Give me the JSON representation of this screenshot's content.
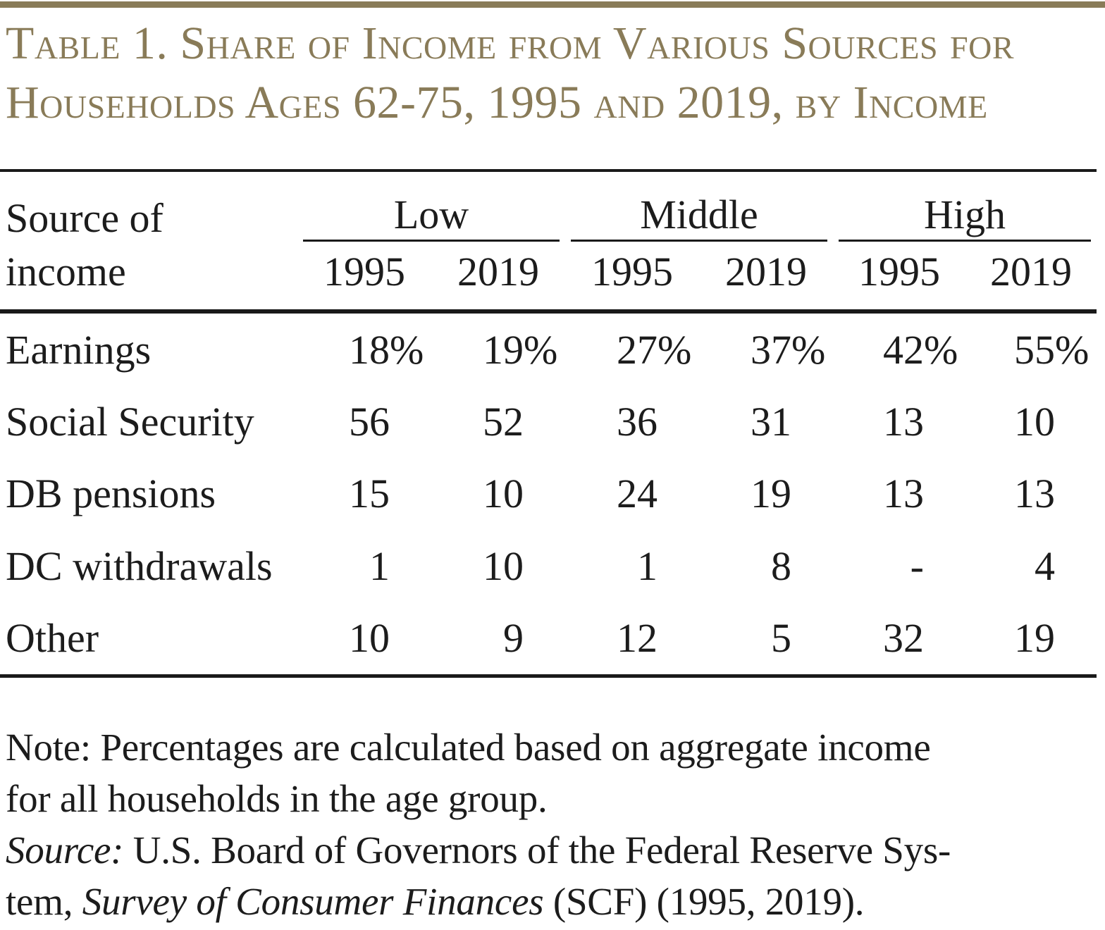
{
  "theme": {
    "accent_color": "#897b58",
    "rule_color": "#1a1a1a",
    "text_color": "#1c1c1c"
  },
  "title": {
    "line1": "Table 1. Share of Income from Various Sources for",
    "line2": "Households Ages 62-75, 1995 and 2019, by Income"
  },
  "table": {
    "stub_header": {
      "line1": "Source of",
      "line2": "income"
    },
    "groups": [
      {
        "label": "Low"
      },
      {
        "label": "Middle"
      },
      {
        "label": "High"
      }
    ],
    "year_headers": [
      "1995",
      "2019",
      "1995",
      "2019",
      "1995",
      "2019"
    ],
    "rows": [
      {
        "label": "Earnings",
        "values": [
          "18%",
          "19%",
          "27%",
          "37%",
          "42%",
          "55%"
        ]
      },
      {
        "label": "Social Security",
        "values": [
          "56",
          "52",
          "36",
          "31",
          "13",
          "10"
        ]
      },
      {
        "label": "DB pensions",
        "values": [
          "15",
          "10",
          "24",
          "19",
          "13",
          "13"
        ]
      },
      {
        "label": "DC withdrawals",
        "values": [
          "1",
          "10",
          "1",
          "8",
          "-",
          "4"
        ]
      },
      {
        "label": "Other",
        "values": [
          "10",
          "9",
          "12",
          "5",
          "32",
          "19"
        ]
      }
    ]
  },
  "notes": {
    "note_line1": "Note: Percentages are calculated based on aggregate income",
    "note_line2": "for all households in the age group.",
    "source_italic1": "Source:",
    "source_regular1": " U.S. Board of Governors of the Federal Reserve Sys-",
    "source_regular2": "tem, ",
    "source_italic2": "Survey of Consumer Finances",
    "source_regular3": " (SCF) (1995, 2019)."
  }
}
